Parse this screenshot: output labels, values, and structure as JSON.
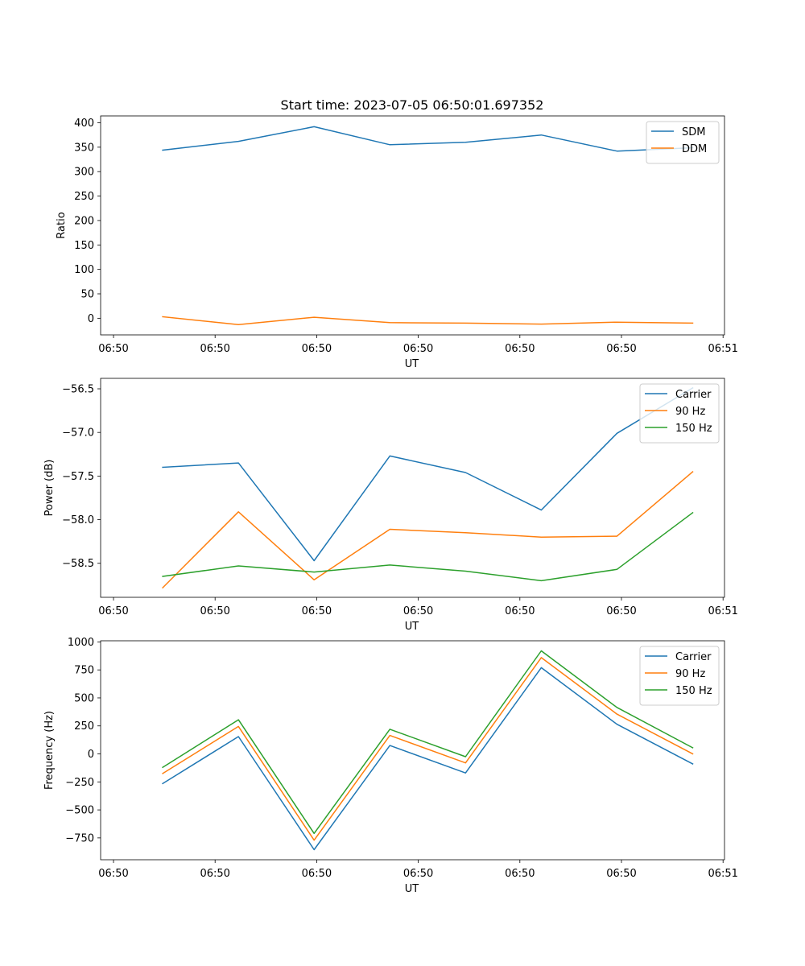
{
  "title": "Start time: 2023-07-05 06:50:01.697352",
  "chart_data": [
    {
      "type": "line",
      "title": "Start time: 2023-07-05 06:50:01.697352",
      "xlabel": "UT",
      "ylabel": "Ratio",
      "x_tick_labels": [
        "06:50",
        "06:50",
        "06:50",
        "06:50",
        "06:50",
        "06:50",
        "06:51"
      ],
      "yticks": [
        0,
        50,
        100,
        150,
        200,
        250,
        300,
        350,
        400
      ],
      "ylim": [
        -34,
        414
      ],
      "x": [
        1,
        2,
        3,
        4,
        5,
        6,
        7,
        8
      ],
      "xlim": [
        0.18,
        8.42
      ],
      "legend_position": "top-right",
      "series": [
        {
          "name": "SDM",
          "color": "#1f77b4",
          "values": [
            344,
            362,
            392,
            355,
            360,
            375,
            342,
            349
          ]
        },
        {
          "name": "DDM",
          "color": "#ff7f0e",
          "values": [
            3,
            -13,
            2,
            -9,
            -10,
            -12,
            -8,
            -10
          ]
        }
      ]
    },
    {
      "type": "line",
      "title": "",
      "xlabel": "UT",
      "ylabel": "Power (dB)",
      "x_tick_labels": [
        "06:50",
        "06:50",
        "06:50",
        "06:50",
        "06:50",
        "06:50",
        "06:51"
      ],
      "yticks": [
        -56.5,
        -57.0,
        -57.5,
        -58.0,
        -58.5
      ],
      "ytick_labels": [
        "−56.5",
        "−57.0",
        "−57.5",
        "−58.0",
        "−58.5"
      ],
      "ylim": [
        -58.89,
        -56.38
      ],
      "x": [
        1,
        2,
        3,
        4,
        5,
        6,
        7,
        8
      ],
      "xlim": [
        0.18,
        8.42
      ],
      "legend_position": "top-right",
      "series": [
        {
          "name": "Carrier",
          "color": "#1f77b4",
          "values": [
            -57.4,
            -57.35,
            -58.47,
            -57.27,
            -57.46,
            -57.89,
            -57.01,
            -56.49
          ]
        },
        {
          "name": "90 Hz",
          "color": "#ff7f0e",
          "values": [
            -58.78,
            -57.91,
            -58.69,
            -58.11,
            -58.15,
            -58.2,
            -58.19,
            -57.45
          ]
        },
        {
          "name": "150 Hz",
          "color": "#2ca02c",
          "values": [
            -58.65,
            -58.53,
            -58.6,
            -58.52,
            -58.59,
            -58.7,
            -58.57,
            -57.92
          ]
        }
      ]
    },
    {
      "type": "line",
      "title": "",
      "xlabel": "UT",
      "ylabel": "Frequency (Hz)",
      "x_tick_labels": [
        "06:50",
        "06:50",
        "06:50",
        "06:50",
        "06:50",
        "06:50",
        "06:51"
      ],
      "yticks": [
        1000,
        750,
        500,
        250,
        0,
        -250,
        -500,
        -750
      ],
      "ytick_labels": [
        "1000",
        "750",
        "500",
        "250",
        "0",
        "−250",
        "−500",
        "−750"
      ],
      "ylim": [
        -945,
        1010
      ],
      "x": [
        1,
        2,
        3,
        4,
        5,
        6,
        7,
        8
      ],
      "xlim": [
        0.18,
        8.42
      ],
      "legend_position": "top-right",
      "series": [
        {
          "name": "Carrier",
          "color": "#1f77b4",
          "values": [
            -265,
            155,
            -855,
            75,
            -170,
            770,
            265,
            -90
          ]
        },
        {
          "name": "90 Hz",
          "color": "#ff7f0e",
          "values": [
            -175,
            245,
            -770,
            165,
            -80,
            860,
            355,
            0
          ]
        },
        {
          "name": "150 Hz",
          "color": "#2ca02c",
          "values": [
            -120,
            305,
            -710,
            220,
            -25,
            920,
            415,
            55
          ]
        }
      ]
    }
  ]
}
